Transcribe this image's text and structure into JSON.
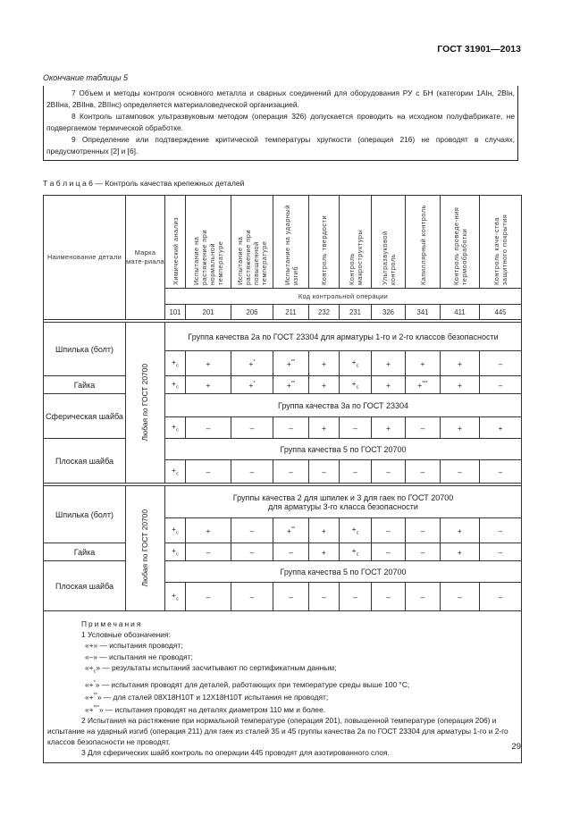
{
  "header": {
    "doc_id": "ГОСТ 31901—2013"
  },
  "continuation_caption": "Окончание таблицы  5",
  "prev_notes": [
    "7 Объем и методы контроля основного металла и сварных соединений для оборудования РУ с БН (категории 1АIн, 2ВIн, 2ВIIна, 2ВIIнв, 2ВIIнс) определяется материаловедческой организацией.",
    "8 Контроль штамповок ультразвуковым методом (операция 326) допускается проводить на исходном полуфабрикате, не подвергаемом термической обработке.",
    "9 Определение или подтверждение критической температуры хрупкости (операция 216) не проводят в случаях, предусмотренных [2] и [6]."
  ],
  "table_caption": "Т а б л и ц а  6 — Контроль качества крепежных деталей",
  "table": {
    "col_part": "Наименование детали",
    "col_material": "Марка мате-риала",
    "op_headers": [
      "Химический анализ",
      "Испытание на растяжение при нормальной температуре",
      "Испытание на растяжение при повышенной температуре",
      "Испытание на ударный изгиб",
      "Контроль твердости",
      "Контроль макроструктуры",
      "Ультразвуковой контроль",
      "Капиллярный контроль",
      "Контроль проведе-ния термообработки",
      "Контроль каче-ства защитного покрытия"
    ],
    "code_header": "Код контрольной операции",
    "codes": [
      "101",
      "201",
      "206",
      "211",
      "232",
      "231",
      "326",
      "341",
      "411",
      "445"
    ],
    "material": "Любая по ГОСТ 20700",
    "sections": [
      {
        "groups": [
          {
            "part": "Шпилька (болт)",
            "group": "Группа качества 2а по ГОСТ 23304 для арматуры 1-го и 2-го классов безопасности",
            "values": [
              "+с",
              "+",
              "+*",
              "+**",
              "+",
              "+с",
              "+",
              "+",
              "+",
              "–"
            ]
          },
          {
            "part": "Гайка",
            "group": "",
            "values": [
              "+с",
              "+",
              "+*",
              "+**",
              "+",
              "+с",
              "+",
              "+***",
              "+",
              "–"
            ]
          },
          {
            "part": "Сферическая шайба",
            "group": "Группа качества 3а  по ГОСТ 23304",
            "values": [
              "+с",
              "–",
              "–",
              "–",
              "+",
              "–",
              "+",
              "–",
              "+",
              "+"
            ]
          },
          {
            "part": "Плоская шайба",
            "group": "Группа качества 5 по ГОСТ 20700",
            "values": [
              "+с",
              "–",
              "–",
              "–",
              "–",
              "–",
              "–",
              "–",
              "–",
              "–"
            ]
          }
        ]
      },
      {
        "groups": [
          {
            "part": "Шпилька (болт)",
            "group": "Группы качества 2 для шпилек и 3 для гаек по ГОСТ 20700",
            "group2": "для арматуры 3-го класса безопасности",
            "values": [
              "+с",
              "+",
              "–",
              "+**",
              "+",
              "+с",
              "–",
              "–",
              "+",
              "–"
            ]
          },
          {
            "part": "Гайка",
            "group": "",
            "values": [
              "+с",
              "–",
              "–",
              "–",
              "+",
              "+с",
              "–",
              "–",
              "+",
              "–"
            ]
          },
          {
            "part": "Плоская шайба",
            "group": "Группа качества 5 по ГОСТ 20700",
            "values": [
              "+с",
              "–",
              "–",
              "–",
              "–",
              "–",
              "–",
              "–",
              "–",
              "–"
            ]
          }
        ]
      }
    ],
    "notes": {
      "title": "Примечания",
      "n1": "1 Условные обозначения:",
      "legend": [
        "«+» — испытания проводят;",
        "«–» — испытания не проводят;",
        "«+с» — результаты испытаний засчитывают по сертификатным данным;",
        "«+*» — испытания проводят для деталей, работающих при температуре среды выше 100 °С;",
        "«+**» — для сталей 08Х18Н10Т и 12Х18Н10Т испытания не проводят;",
        "«+***» — испытания проводят на деталях диаметром 110 мм и более."
      ],
      "n2": "2 Испытания на растяжение при нормальной температуре (операция 201), повышенной температуре (операция  206) и испытание на ударный изгиб (операция 211)  для гаек из сталей 35 и 45  группы качества 2а по ГОСТ 23304 для арматуры 1-го и 2-го  классов безопасности не проводят.",
      "n3": "3  Для сферических шайб контроль по операции 445 проводят для азотированного слоя."
    }
  },
  "page_number": "29"
}
